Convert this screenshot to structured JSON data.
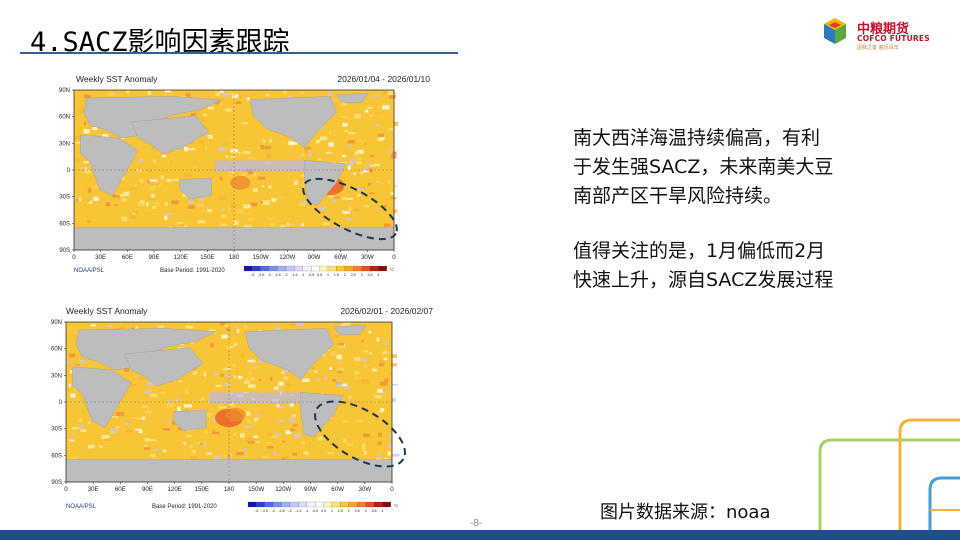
{
  "title": "4.SACZ影响因素跟踪",
  "logo": {
    "cn": "中粮期货",
    "en": "COFCO FUTURES",
    "sub": "因我之善 遍历百年"
  },
  "maps": [
    {
      "title": "Weekly SST Anomaly",
      "date": "2026/01/04 - 2026/01/10",
      "credit": "NOAA/PSL",
      "base_period": "Base Period: 1991-2020",
      "lat_labels": [
        "90N",
        "60N",
        "30N",
        "0",
        "30S",
        "60S",
        "90S"
      ],
      "lon_labels": [
        "0",
        "30E",
        "60E",
        "90E",
        "120E",
        "150E",
        "180",
        "150W",
        "120W",
        "90W",
        "60W",
        "30W",
        "0"
      ],
      "colorbar_ticks": [
        "-4",
        "-3.5",
        "-3",
        "-2.5",
        "-2",
        "-1.5",
        "-1",
        "-0.5",
        "0.5",
        "1",
        "1.5",
        "2",
        "2.5",
        "3",
        "3.5",
        "4"
      ],
      "colorbar_unit": "°C"
    },
    {
      "title": "Weekly SST Anomaly",
      "date": "2026/02/01 - 2026/02/07",
      "credit": "NOAA/PSL",
      "base_period": "Base Period: 1991-2020",
      "lat_labels": [
        "90N",
        "60N",
        "30N",
        "0",
        "30S",
        "60S",
        "90S"
      ],
      "lon_labels": [
        "0",
        "30E",
        "60E",
        "90E",
        "120E",
        "150E",
        "180",
        "150W",
        "120W",
        "90W",
        "60W",
        "30W",
        "0"
      ],
      "colorbar_ticks": [
        "-4",
        "-3.5",
        "-3",
        "-2.5",
        "-2",
        "-1.5",
        "-1",
        "-0.5",
        "0.5",
        "1",
        "1.5",
        "2",
        "2.5",
        "3",
        "3.5",
        "4"
      ],
      "colorbar_unit": "°C"
    }
  ],
  "colors": {
    "title_rule": "#3a5f8f",
    "bottom_bar": "#1e4e8c",
    "land": "#bdbdbd",
    "ocean_warm": "#f7c535",
    "ocean_hot": "#e8602a",
    "ocean_cool": "#b9b6ee",
    "ellipse": "#1f3550"
  },
  "paragraph1": [
    "南大西洋海温持续偏高，有利",
    "于发生强SACZ，未来南美大豆",
    "南部产区干旱风险持续。"
  ],
  "paragraph2": [
    "值得关注的是，1月偏低而2月",
    "快速上升，源自SACZ发展过程"
  ],
  "source": "图片数据来源：noaa",
  "page_number": "-8-"
}
